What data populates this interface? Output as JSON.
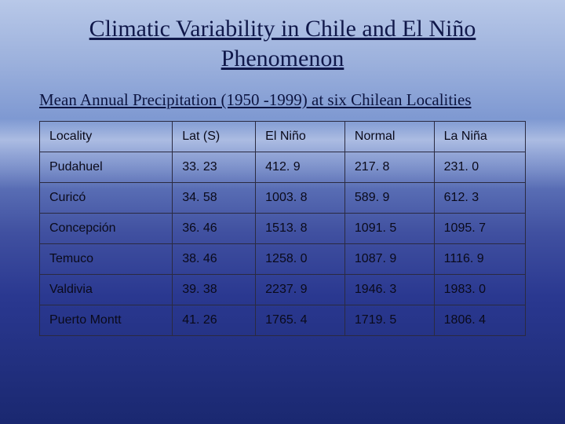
{
  "slide": {
    "title": "Climatic Variability in Chile and El Niño Phenomenon",
    "subtitle": "Mean Annual Precipitation (1950 -1999) at six Chilean Localities"
  },
  "table": {
    "type": "table",
    "columns": [
      "Locality",
      "Lat  (S)",
      "El Niño",
      "Normal",
      "La Niña"
    ],
    "rows": [
      [
        "Pudahuel",
        "33. 23",
        "412. 9",
        "217. 8",
        "231. 0"
      ],
      [
        "Curicó",
        "34. 58",
        "1003. 8",
        "589. 9",
        "612. 3"
      ],
      [
        "Concepción",
        "36. 46",
        "1513. 8",
        "1091. 5",
        "1095. 7"
      ],
      [
        "Temuco",
        "38. 46",
        "1258. 0",
        "1087. 9",
        "1116. 9"
      ],
      [
        "Valdivia",
        "39. 38",
        "2237. 9",
        "1946. 3",
        "1983. 0"
      ],
      [
        "Puerto Montt",
        "41. 26",
        "1765. 4",
        "1719. 5",
        "1806. 4"
      ]
    ],
    "border_color": "#2a2a40",
    "header_fontsize": 16,
    "cell_fontsize": 16,
    "text_color": "#0a0a1a",
    "font_family": "Arial"
  },
  "style": {
    "title_color": "#10184a",
    "title_fontsize": 30,
    "subtitle_fontsize": 21,
    "background_gradient": [
      "#b8c8e8",
      "#9bb0dc",
      "#7a95d0",
      "#4050a0",
      "#2a3890",
      "#1a2870"
    ]
  }
}
